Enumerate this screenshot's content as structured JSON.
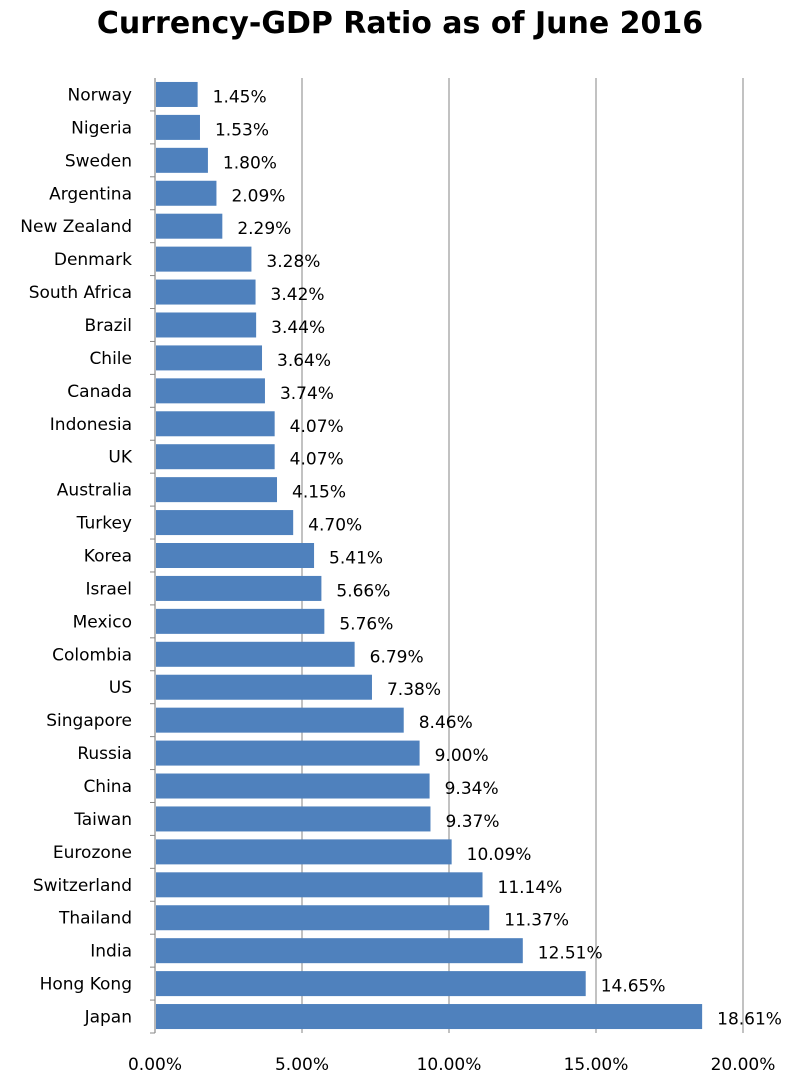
{
  "chart_data": {
    "type": "bar",
    "orientation": "horizontal",
    "title": "Currency-GDP Ratio as of June 2016",
    "xlabel": "",
    "ylabel": "",
    "categories": [
      "Norway",
      "Nigeria",
      "Sweden",
      "Argentina",
      "New Zealand",
      "Denmark",
      "South Africa",
      "Brazil",
      "Chile",
      "Canada",
      "Indonesia",
      "UK",
      "Australia",
      "Turkey",
      "Korea",
      "Israel",
      "Mexico",
      "Colombia",
      "US",
      "Singapore",
      "Russia",
      "China",
      "Taiwan",
      "Eurozone",
      "Switzerland",
      "Thailand",
      "India",
      "Hong Kong",
      "Japan"
    ],
    "values": [
      1.45,
      1.53,
      1.8,
      2.09,
      2.29,
      3.28,
      3.42,
      3.44,
      3.64,
      3.74,
      4.07,
      4.07,
      4.15,
      4.7,
      5.41,
      5.66,
      5.76,
      6.79,
      7.38,
      8.46,
      9.0,
      9.34,
      9.37,
      10.09,
      11.14,
      11.37,
      12.51,
      14.65,
      18.61
    ],
    "data_labels": [
      "1.45%",
      "1.53%",
      "1.80%",
      "2.09%",
      "2.29%",
      "3.28%",
      "3.42%",
      "3.44%",
      "3.64%",
      "3.74%",
      "4.07%",
      "4.07%",
      "4.15%",
      "4.70%",
      "5.41%",
      "5.66%",
      "5.76%",
      "6.79%",
      "7.38%",
      "8.46%",
      "9.00%",
      "9.34%",
      "9.37%",
      "10.09%",
      "11.14%",
      "11.37%",
      "12.51%",
      "14.65%",
      "18.61%"
    ],
    "xlim": [
      0,
      20
    ],
    "x_ticks": [
      0,
      5,
      10,
      15,
      20
    ],
    "x_tick_labels": [
      "0.00%",
      "5.00%",
      "10.00%",
      "15.00%",
      "20.00%"
    ],
    "grid": "vertical",
    "legend": "none",
    "colors": {
      "bar": "#4f81bd",
      "grid": "#999999",
      "axis": "#888888"
    }
  }
}
